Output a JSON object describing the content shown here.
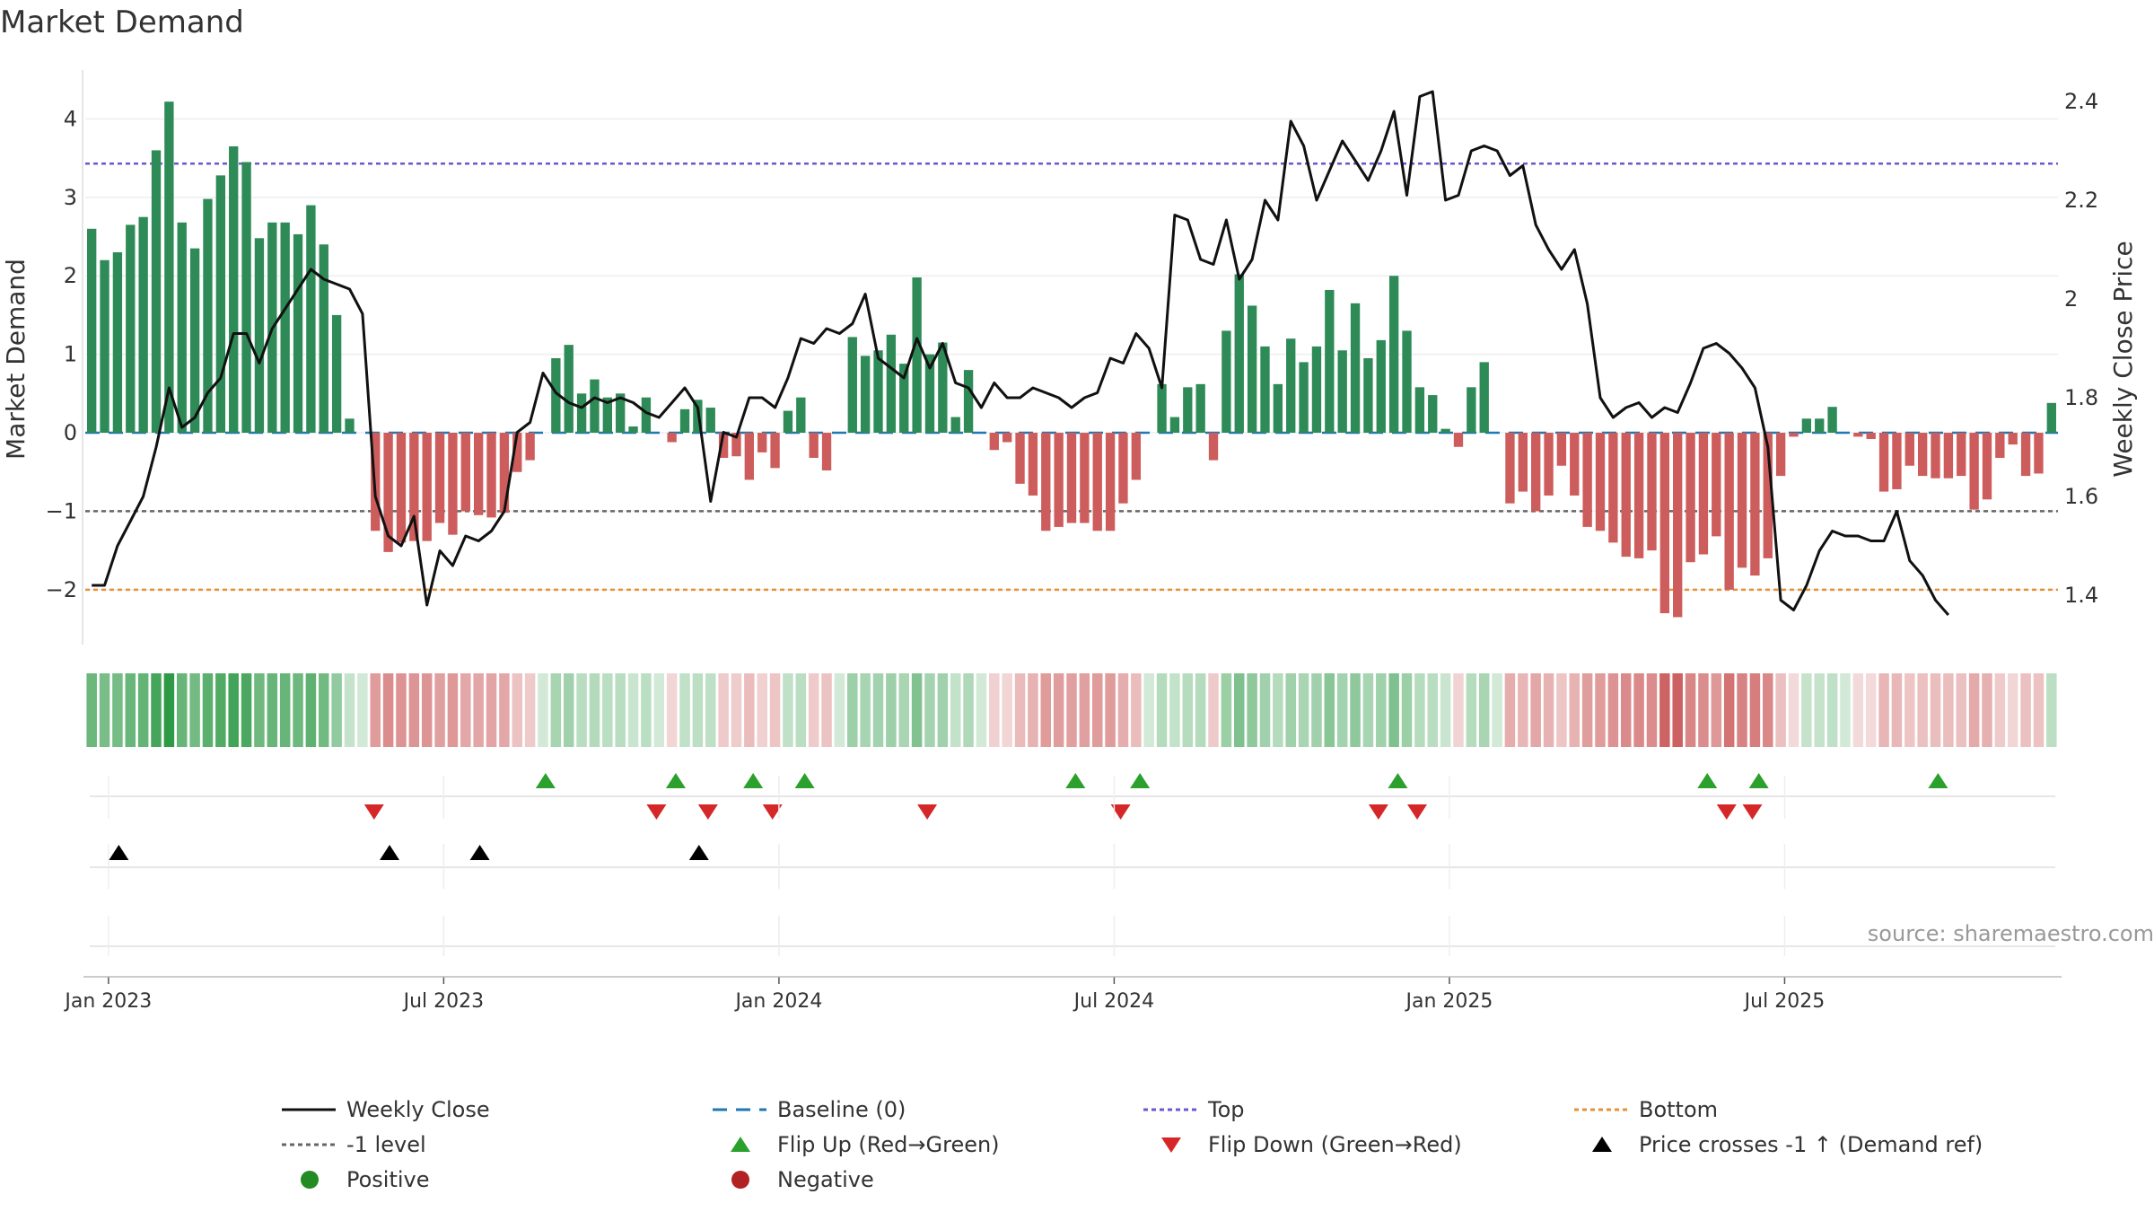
{
  "chart_data": {
    "type": "bar+line",
    "title": "Market Demand",
    "source": "source: sharemaestro.com",
    "left_axis": {
      "label": "Market Demand",
      "range": [
        -2.7,
        4.6
      ],
      "ticks": [
        -2,
        -1,
        0,
        1,
        2,
        3,
        4
      ],
      "tick_labels": [
        "−2",
        "−1",
        "0",
        "1",
        "2",
        "3",
        "4"
      ]
    },
    "right_axis": {
      "label": "Weekly Close Price",
      "range": [
        1.3,
        2.46
      ],
      "ticks": [
        1.4,
        1.6,
        1.8,
        2.0,
        2.2,
        2.4
      ],
      "tick_labels": [
        "1.4",
        "1.6",
        "1.8",
        "2",
        "2.2",
        "2.4"
      ]
    },
    "x_axis": {
      "ticks": [
        1.3,
        27.3,
        53.3,
        79.3,
        105.3,
        131.3
      ],
      "tick_labels": [
        "Jan 2023",
        "Jul 2023",
        "Jan 2024",
        "Jul 2024",
        "Jan 2025",
        "Jul 2025"
      ]
    },
    "reference_lines": {
      "top": 3.43,
      "minus_one": -1,
      "bottom": -2,
      "baseline": 0
    },
    "demand": [
      2.6,
      2.2,
      2.3,
      2.65,
      2.75,
      3.6,
      4.22,
      2.68,
      2.35,
      2.98,
      3.28,
      3.65,
      3.45,
      2.48,
      2.68,
      2.68,
      2.53,
      2.9,
      2.4,
      1.5,
      0.18,
      0,
      -1.25,
      -1.52,
      -1.4,
      -1.38,
      -1.38,
      -1.15,
      -1.3,
      -1.0,
      -1.05,
      -1.08,
      -1.02,
      -0.5,
      -0.35,
      0,
      0.95,
      1.12,
      0.5,
      0.68,
      0.45,
      0.5,
      0.08,
      0.45,
      0,
      -0.12,
      0.3,
      0.42,
      0.32,
      -0.32,
      -0.3,
      -0.6,
      -0.25,
      -0.45,
      0.28,
      0.45,
      -0.32,
      -0.48,
      0,
      1.22,
      0.98,
      1.05,
      1.25,
      0.88,
      1.98,
      1.0,
      1.15,
      0.2,
      0.8,
      0,
      -0.22,
      -0.12,
      -0.65,
      -0.8,
      -1.25,
      -1.2,
      -1.15,
      -1.15,
      -1.25,
      -1.25,
      -0.9,
      -0.6,
      0,
      0.62,
      0.2,
      0.58,
      0.62,
      -0.35,
      1.3,
      2.02,
      1.62,
      1.1,
      0.62,
      1.2,
      0.9,
      1.1,
      1.82,
      1.05,
      1.65,
      0.95,
      1.18,
      2.0,
      1.3,
      0.58,
      0.48,
      0.05,
      -0.18,
      0.58,
      0.9,
      0,
      -0.9,
      -0.75,
      -1.0,
      -0.8,
      -0.42,
      -0.8,
      -1.2,
      -1.25,
      -1.4,
      -1.58,
      -1.6,
      -1.5,
      -2.3,
      -2.35,
      -1.65,
      -1.55,
      -1.32,
      -2.0,
      -1.72,
      -1.82,
      -1.6,
      -0.55,
      -0.05,
      0.18,
      0.18,
      0.33,
      0,
      -0.05,
      -0.08,
      -0.75,
      -0.72,
      -0.42,
      -0.55,
      -0.58,
      -0.58,
      -0.55,
      -0.98,
      -0.85,
      -0.32,
      -0.15,
      -0.55,
      -0.52,
      0.38
    ],
    "weekly_close": [
      1.42,
      1.42,
      1.5,
      1.55,
      1.6,
      1.7,
      1.82,
      1.74,
      1.76,
      1.81,
      1.84,
      1.93,
      1.93,
      1.87,
      1.94,
      1.98,
      2.02,
      2.06,
      2.04,
      2.03,
      2.02,
      1.97,
      1.6,
      1.52,
      1.5,
      1.56,
      1.38,
      1.49,
      1.46,
      1.52,
      1.51,
      1.53,
      1.57,
      1.73,
      1.75,
      1.85,
      1.81,
      1.79,
      1.78,
      1.8,
      1.79,
      1.8,
      1.79,
      1.77,
      1.76,
      1.79,
      1.82,
      1.78,
      1.59,
      1.73,
      1.72,
      1.8,
      1.8,
      1.78,
      1.84,
      1.92,
      1.91,
      1.94,
      1.93,
      1.95,
      2.01,
      1.88,
      1.86,
      1.84,
      1.92,
      1.86,
      1.91,
      1.83,
      1.82,
      1.78,
      1.83,
      1.8,
      1.8,
      1.82,
      1.81,
      1.8,
      1.78,
      1.8,
      1.81,
      1.88,
      1.87,
      1.93,
      1.9,
      1.82,
      2.17,
      2.16,
      2.08,
      2.07,
      2.16,
      2.04,
      2.08,
      2.2,
      2.16,
      2.36,
      2.31,
      2.2,
      2.26,
      2.32,
      2.28,
      2.24,
      2.3,
      2.38,
      2.21,
      2.41,
      2.42,
      2.2,
      2.21,
      2.3,
      2.31,
      2.3,
      2.25,
      2.27,
      2.15,
      2.1,
      2.06,
      2.1,
      1.99,
      1.8,
      1.76,
      1.78,
      1.79,
      1.76,
      1.78,
      1.77,
      1.83,
      1.9,
      1.91,
      1.89,
      1.86,
      1.82,
      1.7,
      1.39,
      1.37,
      1.42,
      1.49,
      1.53,
      1.52,
      1.52,
      1.51,
      1.51,
      1.57,
      1.47,
      1.44,
      1.39,
      1.36
    ],
    "flip_up": [
      35.2,
      45.3,
      51.3,
      55.3,
      76.3,
      81.3,
      101.3,
      125.3,
      129.3,
      143.2
    ],
    "flip_down": [
      21.9,
      43.8,
      47.8,
      52.8,
      64.8,
      79.8,
      99.8,
      102.8,
      126.8,
      128.8
    ],
    "price_crosses": [
      2.1,
      23.1,
      30.1,
      47.1
    ],
    "colors": {
      "positive": "#2e8b57",
      "negative": "#cd5c5c",
      "line": "#111111",
      "top": "#6a5acd",
      "minus_one": "#666666",
      "bottom": "#e69138",
      "baseline": "#1f77b4",
      "flip_up": "#2ca02c",
      "flip_down": "#d62728",
      "cross": "#000000",
      "dot_positive": "#228b22",
      "dot_negative": "#b22222"
    }
  },
  "legend": {
    "weekly_close": "Weekly Close",
    "baseline": "Baseline (0)",
    "top": "Top",
    "bottom": "Bottom",
    "minus_one": "-1 level",
    "flip_up": "Flip Up (Red→Green)",
    "flip_down": "Flip Down (Green→Red)",
    "price_cross": "Price crosses -1 ↑ (Demand ref)",
    "positive": "Positive",
    "negative": "Negative"
  }
}
